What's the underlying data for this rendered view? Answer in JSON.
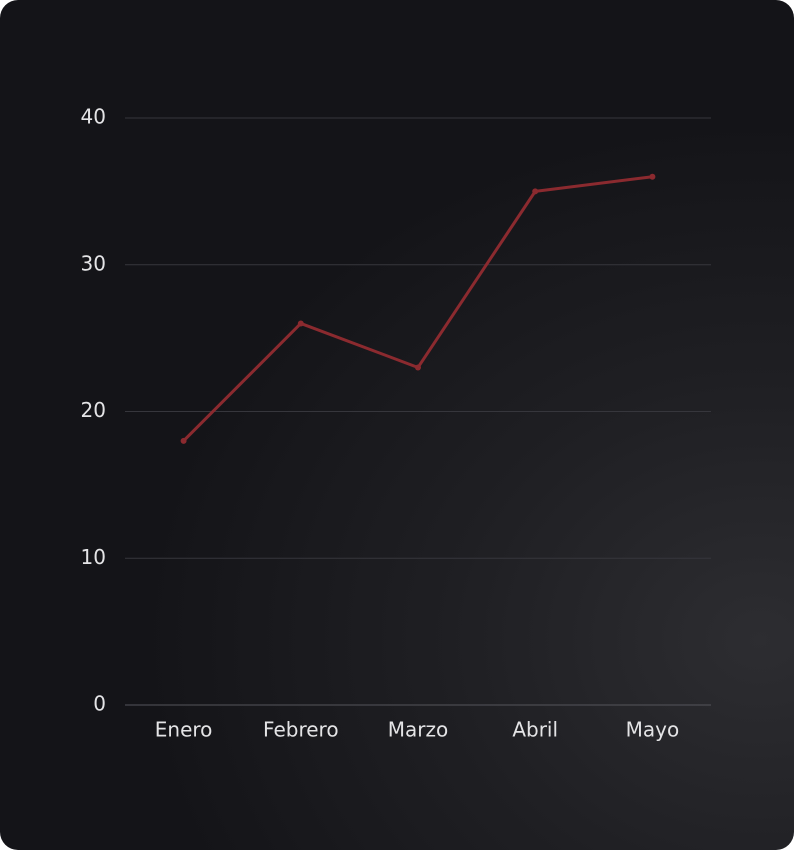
{
  "chart_data": {
    "type": "line",
    "categories": [
      "Enero",
      "Febrero",
      "Marzo",
      "Abril",
      "Mayo"
    ],
    "values": [
      18,
      26,
      23,
      35,
      36
    ],
    "color": "#8b2a2f",
    "ylim": [
      0,
      40
    ],
    "yticks": [
      0,
      10,
      20,
      30,
      40
    ],
    "grid": true
  }
}
